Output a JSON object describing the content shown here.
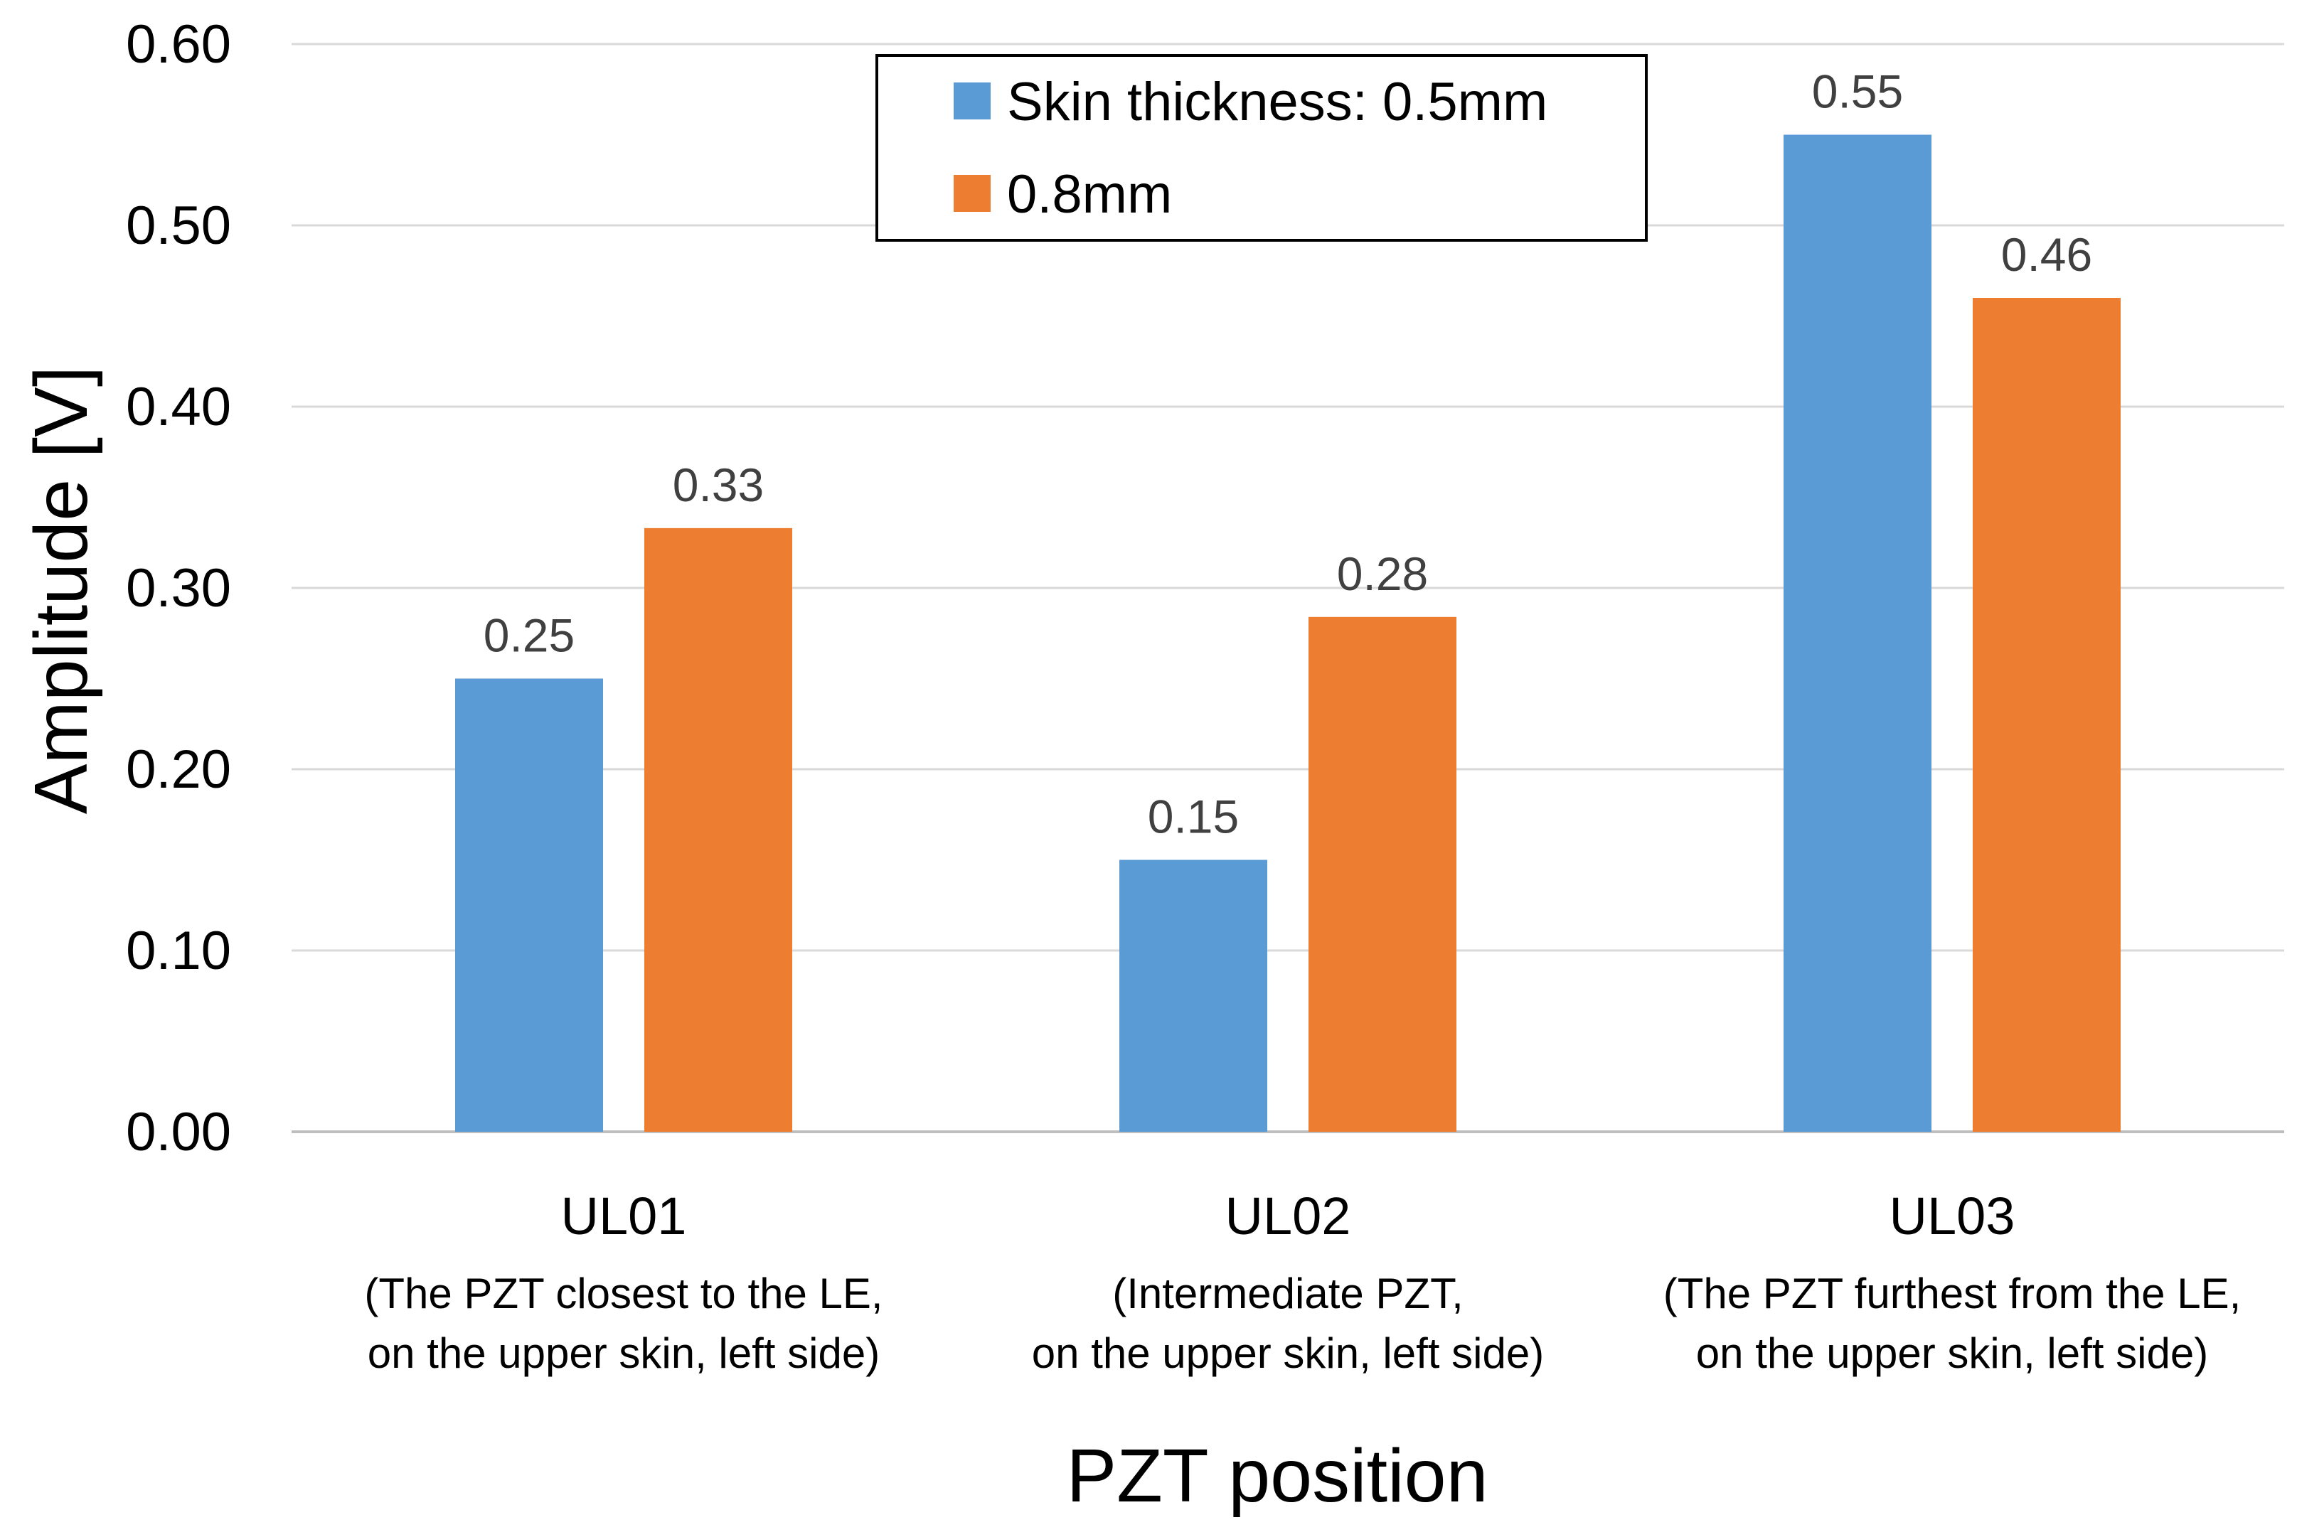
{
  "chart_data": {
    "type": "bar",
    "title": "",
    "xlabel": "PZT position",
    "ylabel": "Amplitude [V]",
    "ylim": [
      0,
      0.6
    ],
    "yticks": [
      "0.00",
      "0.10",
      "0.20",
      "0.30",
      "0.40",
      "0.50",
      "0.60"
    ],
    "grid": true,
    "legend_position": "top-center",
    "categories": [
      {
        "id": "UL01",
        "label": "UL01",
        "sublabel_line1": "(The PZT closest to the LE,",
        "sublabel_line2": "on the upper skin, left side)"
      },
      {
        "id": "UL02",
        "label": "UL02",
        "sublabel_line1": "(Intermediate PZT,",
        "sublabel_line2": "on the upper skin, left side)"
      },
      {
        "id": "UL03",
        "label": "UL03",
        "sublabel_line1": "(The PZT furthest from the LE,",
        "sublabel_line2": "on the upper skin, left side)"
      }
    ],
    "series": [
      {
        "name": "Skin thickness: 0.5mm",
        "color": "#5B9BD5",
        "values": [
          0.25,
          0.15,
          0.55
        ],
        "labels": [
          "0.25",
          "0.15",
          "0.55"
        ]
      },
      {
        "name": "0.8mm",
        "color": "#ED7D31",
        "values": [
          0.333,
          0.284,
          0.46
        ],
        "labels": [
          "0.33",
          "0.28",
          "0.46"
        ]
      }
    ]
  }
}
